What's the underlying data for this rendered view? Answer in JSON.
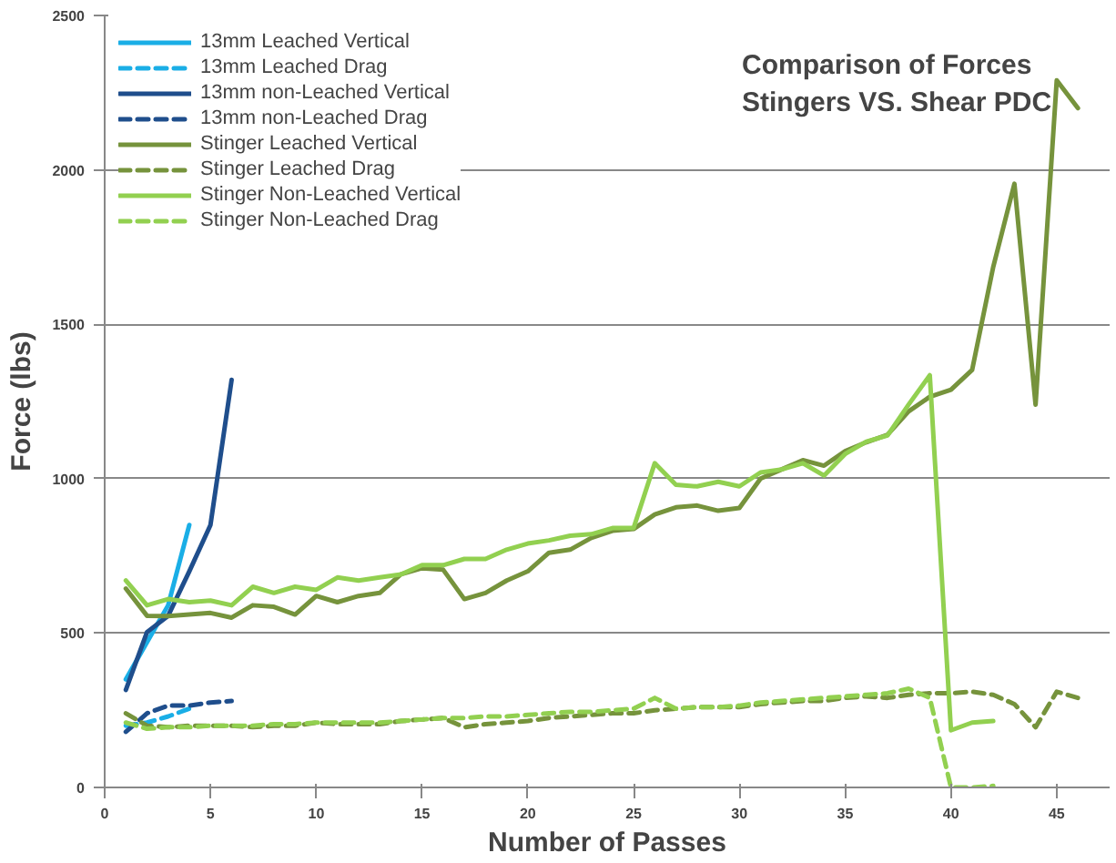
{
  "chart_data": {
    "type": "line",
    "title": "Comparison of Forces\nStingers VS. Shear PDC",
    "xlabel": "Number of Passes",
    "ylabel": "Force (lbs)",
    "xlim": [
      0,
      47.5
    ],
    "xticks": [
      0,
      5,
      10,
      15,
      20,
      25,
      30,
      35,
      40,
      45
    ],
    "ylim": [
      0,
      2500
    ],
    "yticks": [
      0,
      500,
      1000,
      1500,
      2000,
      2500
    ],
    "grid": "y",
    "legend": "top left",
    "marker": "none",
    "series": [
      {
        "name": "13mm Leached Vertical",
        "color": "#1aaee6",
        "line_style": "solid",
        "x": [
          1,
          2,
          3,
          4
        ],
        "values": [
          350,
          470,
          590,
          850
        ]
      },
      {
        "name": "13mm Leached Drag",
        "color": "#1aaee6",
        "line_style": "dashed",
        "x": [
          1,
          2,
          3,
          4
        ],
        "values": [
          200,
          210,
          230,
          255
        ]
      },
      {
        "name": "13mm non-Leached Vertical",
        "color": "#1f4e8c",
        "line_style": "solid",
        "x": [
          1,
          2,
          3,
          4,
          5,
          6
        ],
        "values": [
          316,
          503,
          556,
          700,
          850,
          1320
        ]
      },
      {
        "name": "13mm non-Leached Drag",
        "color": "#1f4e8c",
        "line_style": "dashed",
        "x": [
          1,
          2,
          3,
          4,
          5,
          6
        ],
        "values": [
          180,
          240,
          265,
          265,
          275,
          280
        ]
      },
      {
        "name": "Stinger Leached Vertical",
        "color": "#76933c",
        "line_style": "solid",
        "x": [
          1,
          2,
          3,
          4,
          5,
          6,
          7,
          8,
          9,
          10,
          11,
          12,
          13,
          14,
          15,
          16,
          17,
          18,
          19,
          20,
          21,
          22,
          23,
          24,
          25,
          26,
          27,
          28,
          29,
          30,
          31,
          32,
          33,
          34,
          35,
          36,
          37,
          38,
          39,
          40,
          41,
          42,
          43,
          44,
          45,
          46
        ],
        "values": [
          644,
          556,
          555,
          560,
          565,
          550,
          590,
          585,
          560,
          620,
          600,
          620,
          630,
          690,
          710,
          705,
          610,
          630,
          670,
          700,
          760,
          770,
          808,
          831,
          837,
          884,
          907,
          913,
          896,
          905,
          1000,
          1030,
          1060,
          1042,
          1089,
          1118,
          1142,
          1218,
          1265,
          1288,
          1352,
          1686,
          1955,
          1240,
          2290,
          2200
        ]
      },
      {
        "name": "Stinger Leached Drag",
        "color": "#76933c",
        "line_style": "dashed",
        "x": [
          1,
          2,
          3,
          4,
          5,
          6,
          7,
          8,
          9,
          10,
          11,
          12,
          13,
          14,
          15,
          16,
          17,
          18,
          19,
          20,
          21,
          22,
          23,
          24,
          25,
          26,
          27,
          28,
          29,
          30,
          31,
          32,
          33,
          34,
          35,
          36,
          37,
          38,
          39,
          40,
          41,
          42,
          43,
          44,
          45,
          46
        ],
        "values": [
          240,
          200,
          195,
          200,
          200,
          200,
          195,
          200,
          200,
          210,
          205,
          205,
          205,
          215,
          220,
          225,
          195,
          205,
          210,
          215,
          225,
          230,
          235,
          240,
          240,
          250,
          255,
          260,
          260,
          260,
          270,
          275,
          280,
          280,
          290,
          295,
          290,
          300,
          305,
          305,
          310,
          300,
          270,
          195,
          310,
          290
        ]
      },
      {
        "name": "Stinger Non-Leached Vertical",
        "color": "#92d050",
        "line_style": "solid",
        "x": [
          1,
          2,
          3,
          4,
          5,
          6,
          7,
          8,
          9,
          10,
          11,
          12,
          13,
          14,
          15,
          16,
          17,
          18,
          19,
          20,
          21,
          22,
          23,
          24,
          25,
          26,
          27,
          28,
          29,
          30,
          31,
          32,
          33,
          34,
          35,
          36,
          37,
          38,
          39,
          40,
          41,
          42
        ],
        "values": [
          670,
          590,
          610,
          600,
          605,
          590,
          650,
          630,
          650,
          640,
          680,
          670,
          680,
          690,
          720,
          720,
          740,
          740,
          770,
          790,
          800,
          815,
          820,
          840,
          840,
          1050,
          980,
          975,
          990,
          975,
          1020,
          1030,
          1050,
          1010,
          1080,
          1120,
          1140,
          1240,
          1335,
          185,
          210,
          215
        ]
      },
      {
        "name": "Stinger Non-Leached Drag",
        "color": "#92d050",
        "line_style": "dashed",
        "x": [
          1,
          2,
          3,
          4,
          5,
          6,
          7,
          8,
          9,
          10,
          11,
          12,
          13,
          14,
          15,
          16,
          17,
          18,
          19,
          20,
          21,
          22,
          23,
          24,
          25,
          26,
          27,
          28,
          29,
          30,
          31,
          32,
          33,
          34,
          35,
          36,
          37,
          38,
          39,
          40,
          41,
          42
        ],
        "values": [
          210,
          190,
          195,
          195,
          200,
          200,
          200,
          205,
          205,
          210,
          210,
          210,
          210,
          215,
          220,
          225,
          225,
          230,
          230,
          235,
          240,
          245,
          245,
          250,
          255,
          290,
          255,
          260,
          260,
          265,
          275,
          280,
          285,
          290,
          295,
          300,
          305,
          320,
          290,
          0,
          0,
          5
        ]
      }
    ]
  }
}
